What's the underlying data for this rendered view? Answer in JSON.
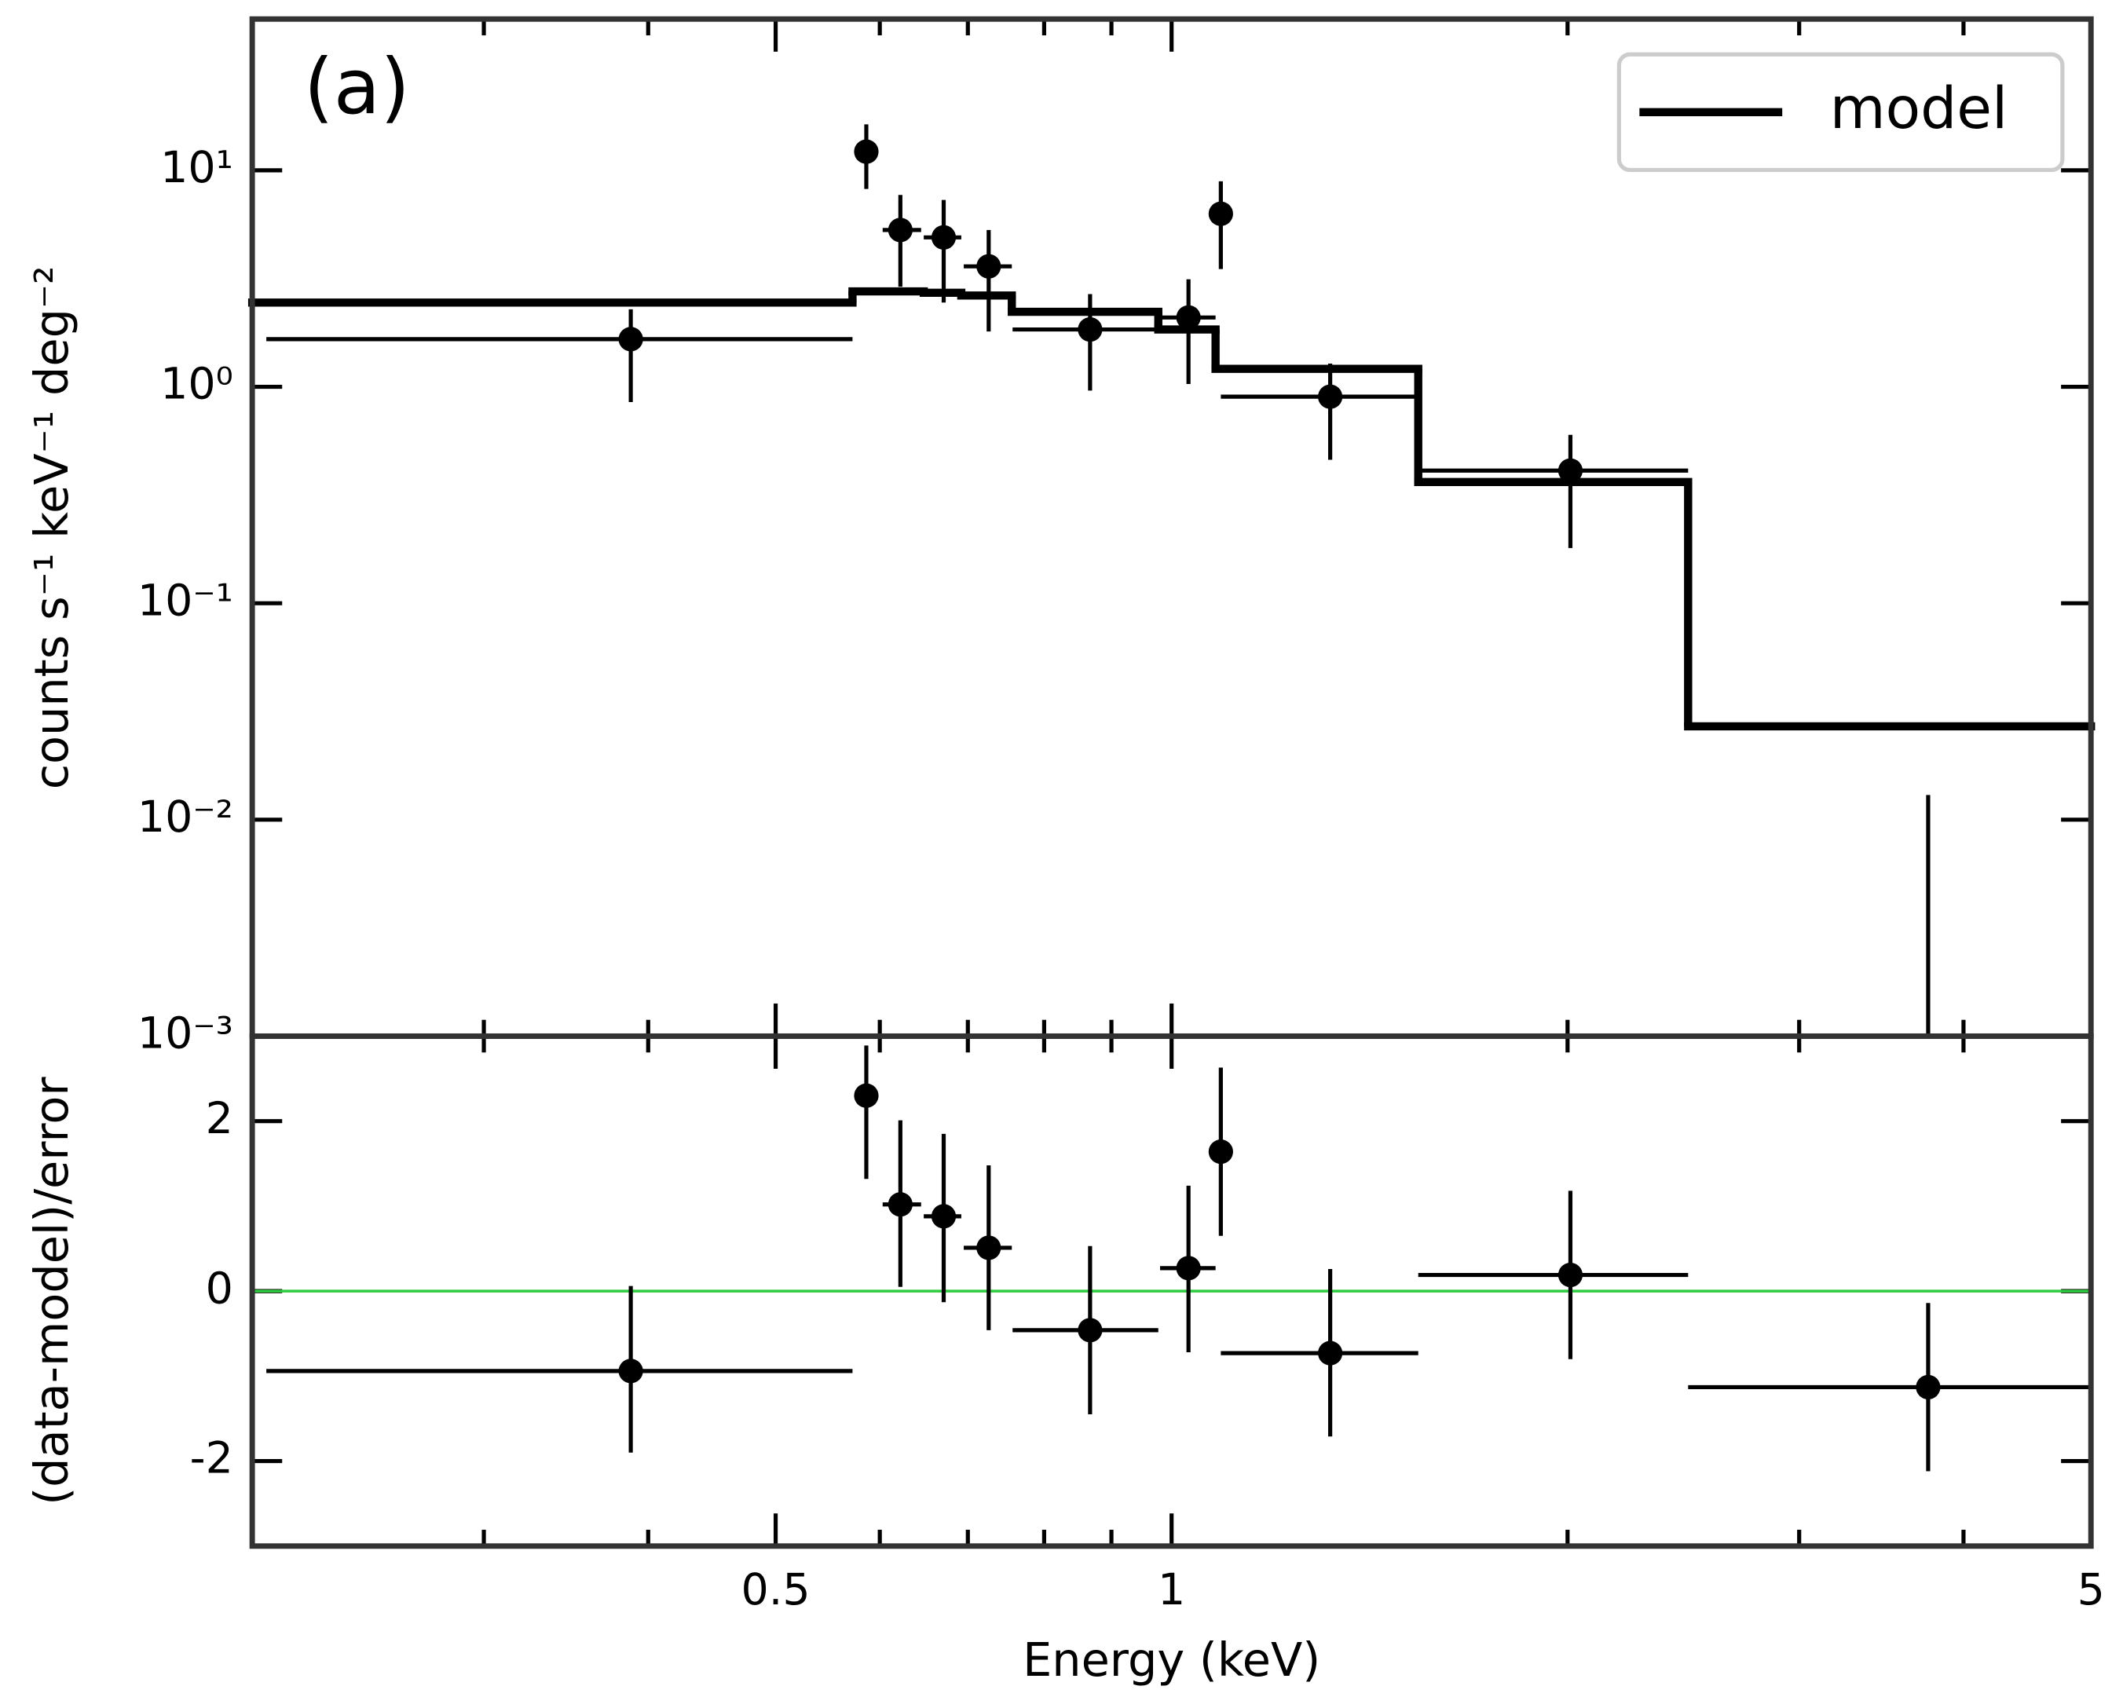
{
  "chart_data": [
    {
      "type": "errorbar",
      "annotation": "(a)",
      "ylabel": "counts s⁻¹ keV⁻¹ deg⁻²",
      "xlog": true,
      "ylog": true,
      "xlim": [
        0.2,
        5
      ],
      "ylim": [
        0.001,
        50
      ],
      "xticks": [
        0.5,
        1,
        5
      ],
      "xticks_minor": [
        0.3,
        0.4,
        0.6,
        0.7,
        0.8,
        0.9,
        2,
        3,
        4
      ],
      "yticks": [
        {
          "value": 10,
          "label": "10¹"
        },
        {
          "value": 1,
          "label": "10⁰"
        },
        {
          "value": 0.1,
          "label": "10⁻¹"
        },
        {
          "value": 0.01,
          "label": "10⁻²"
        },
        {
          "value": 0.001,
          "label": "10⁻³"
        }
      ],
      "legend": "upper right",
      "series": [
        {
          "name": "model",
          "type": "step",
          "color": "#000000",
          "bins": [
            0.2,
            0.572,
            0.648,
            0.692,
            0.756,
            0.977,
            1.08,
            1.54,
            2.47,
            5
          ],
          "values": [
            2.45,
            2.76,
            2.72,
            2.64,
            2.22,
            1.84,
            1.21,
            0.363,
            0.027
          ]
        },
        {
          "type": "errorbar",
          "color": "#000000",
          "x": [
            0.388,
            0.586,
            0.622,
            0.671,
            0.726,
            0.867,
            1.03,
            1.09,
            1.32,
            2.01,
            3.76
          ],
          "xlow": [
            0.205,
            0.577,
            0.603,
            0.648,
            0.695,
            0.757,
            0.98,
            1.085,
            1.09,
            1.54,
            null
          ],
          "xhigh": [
            0.572,
            0.597,
            0.645,
            0.692,
            0.756,
            0.977,
            1.08,
            1.095,
            1.54,
            2.47,
            null
          ],
          "values": [
            1.66,
            12.2,
            5.3,
            4.9,
            3.6,
            1.84,
            2.09,
            6.3,
            0.9,
            0.41,
            null
          ],
          "ylow": [
            0.85,
            8.2,
            2.9,
            2.45,
            1.8,
            0.96,
            1.03,
            3.5,
            0.46,
            0.18,
            null
          ],
          "yhigh": [
            2.28,
            16.3,
            7.7,
            7.3,
            5.3,
            2.68,
            3.14,
            8.9,
            1.28,
            0.6,
            0.013
          ]
        }
      ]
    },
    {
      "type": "errorbar",
      "ylabel": "(data-model)/error",
      "xlabel": "Energy (keV)",
      "xlog": true,
      "xlim": [
        0.2,
        5
      ],
      "ylim": [
        -3,
        3
      ],
      "xticks": [
        0.5,
        1,
        5
      ],
      "xticks_minor": [
        0.3,
        0.4,
        0.6,
        0.7,
        0.8,
        0.9,
        2,
        3,
        4
      ],
      "yticks": [
        2,
        0,
        -2
      ],
      "reference_line": {
        "y": 0,
        "color": "#2ecc40"
      },
      "series": [
        {
          "type": "errorbar",
          "color": "#000000",
          "x": [
            0.388,
            0.586,
            0.622,
            0.671,
            0.726,
            0.867,
            1.03,
            1.09,
            1.32,
            2.01,
            3.76
          ],
          "xlow": [
            0.205,
            0.577,
            0.603,
            0.648,
            0.695,
            0.757,
            0.98,
            1.085,
            1.09,
            1.54,
            2.47
          ],
          "xhigh": [
            0.572,
            0.597,
            0.645,
            0.692,
            0.756,
            0.977,
            1.08,
            1.095,
            1.54,
            2.47,
            5
          ],
          "values": [
            -0.94,
            2.3,
            1.02,
            0.88,
            0.51,
            -0.46,
            0.27,
            1.64,
            -0.73,
            0.19,
            -1.13
          ],
          "ylow": [
            -1.9,
            1.32,
            0.05,
            -0.13,
            -0.46,
            -1.45,
            -0.72,
            0.65,
            -1.71,
            -0.8,
            -2.12
          ],
          "yhigh": [
            0.06,
            2.89,
            2.01,
            1.85,
            1.48,
            0.53,
            1.24,
            2.63,
            0.26,
            1.18,
            -0.14
          ]
        }
      ]
    }
  ]
}
